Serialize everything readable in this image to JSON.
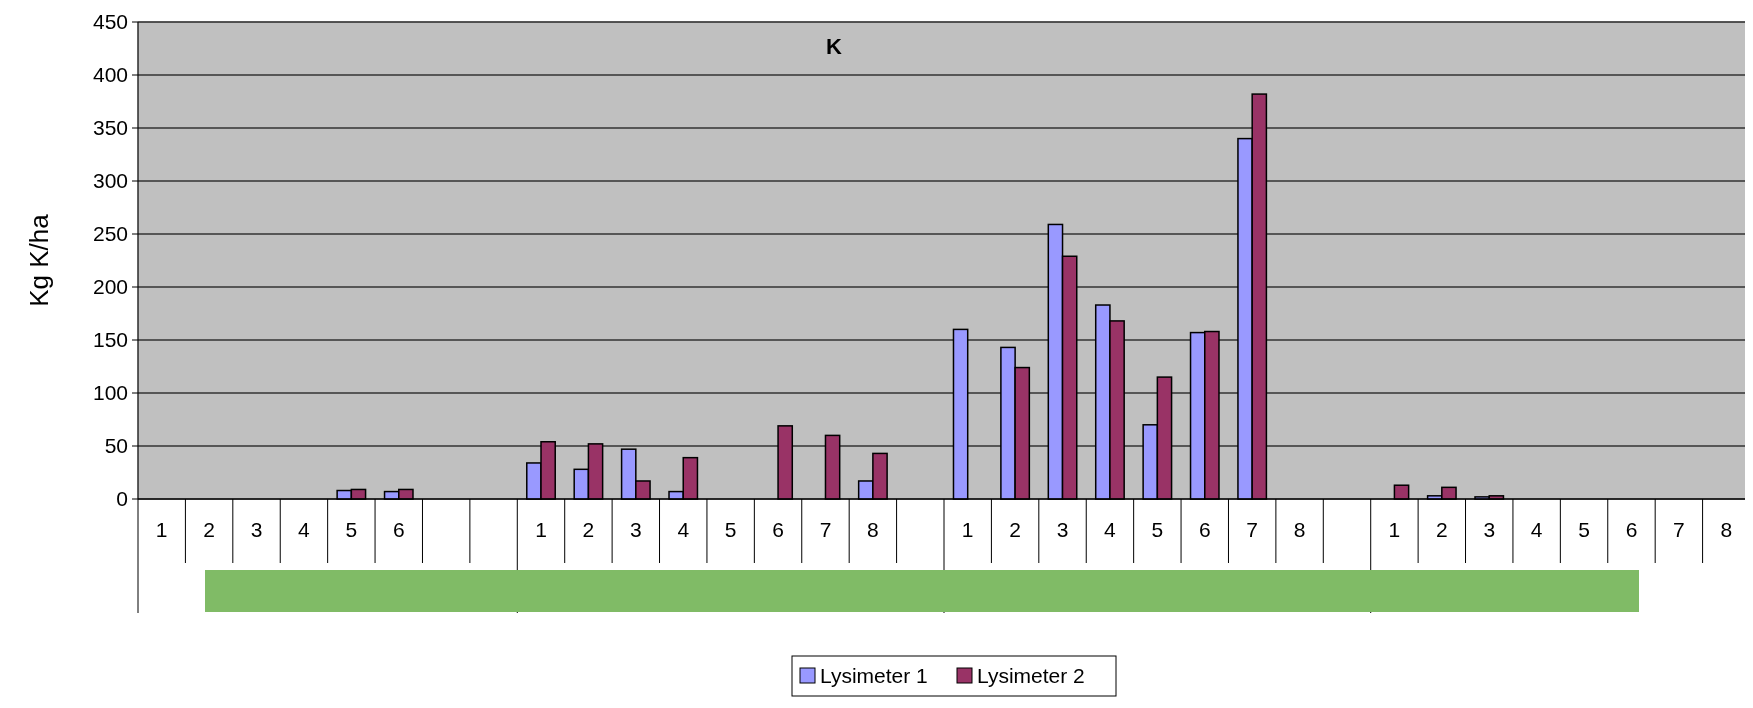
{
  "chart_data": {
    "type": "bar",
    "title": "K",
    "ylabel": "Kg K/ha",
    "categories": [
      "1",
      "2",
      "3",
      "4",
      "5",
      "6",
      null,
      null,
      "1",
      "2",
      "3",
      "4",
      "5",
      "6",
      "7",
      "8",
      null,
      "1",
      "2",
      "3",
      "4",
      "5",
      "6",
      "7",
      "8",
      null,
      "1",
      "2",
      "3",
      "4",
      "5",
      "6",
      "7",
      "8"
    ],
    "series": [
      {
        "name": "Lysimeter 1",
        "color": "#9999ff",
        "values": [
          null,
          null,
          null,
          null,
          8,
          7,
          null,
          null,
          34,
          28,
          47,
          7,
          null,
          null,
          null,
          17,
          null,
          160,
          143,
          259,
          183,
          70,
          157,
          340,
          null,
          null,
          null,
          3,
          2,
          null,
          null,
          null,
          null,
          null
        ]
      },
      {
        "name": "Lysimeter 2",
        "color": "#993366",
        "values": [
          null,
          null,
          null,
          null,
          9,
          9,
          null,
          null,
          54,
          52,
          17,
          39,
          null,
          69,
          60,
          43,
          null,
          null,
          124,
          229,
          168,
          115,
          158,
          382,
          null,
          null,
          13,
          11,
          3,
          null,
          null,
          null,
          null,
          null
        ]
      }
    ],
    "ylim": [
      0,
      450
    ],
    "yticks": [
      0,
      50,
      100,
      150,
      200,
      250,
      300,
      350,
      400,
      450
    ],
    "grid": "y",
    "legend": "bottom"
  }
}
